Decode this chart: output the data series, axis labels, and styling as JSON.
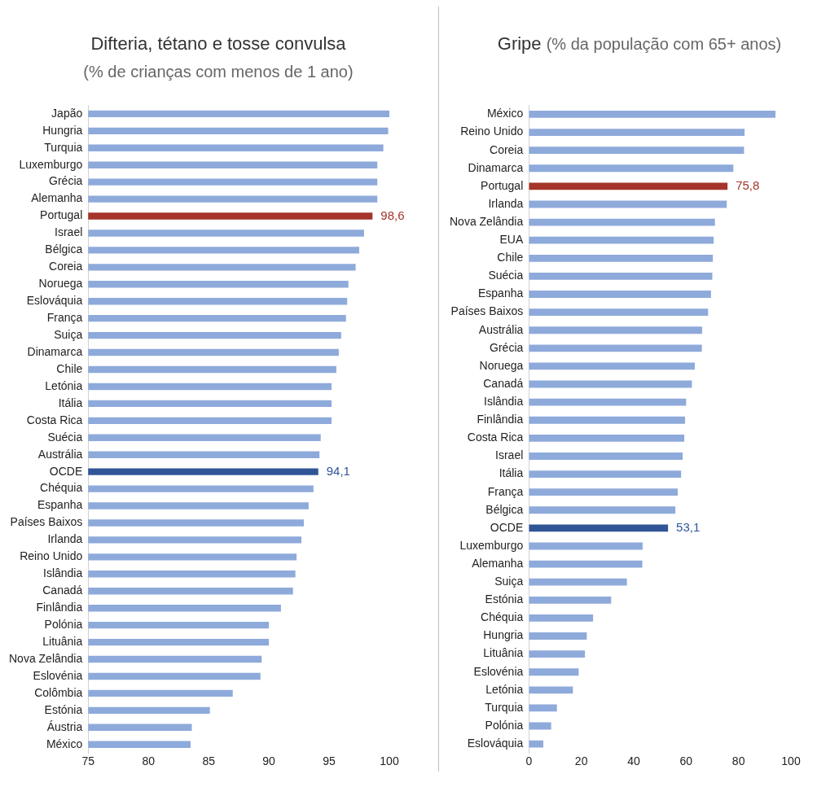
{
  "chart_data": [
    {
      "type": "bar",
      "orientation": "horizontal",
      "title": "Difteria, tétano e tosse convulsa",
      "subtitle": "(% de crianças com menos de 1 ano)",
      "categories": [
        "Japão",
        "Hungria",
        "Turquia",
        "Luxemburgo",
        "Grécia",
        "Alemanha",
        "Portugal",
        "Israel",
        "Bélgica",
        "Coreia",
        "Noruega",
        "Eslováquia",
        "França",
        "Suiça",
        "Dinamarca",
        "Chile",
        "Letónia",
        "Itália",
        "Costa Rica",
        "Suécia",
        "Austrália",
        "OCDE",
        "Chéquia",
        "Espanha",
        "Países Baixos",
        "Irlanda",
        "Reino Unido",
        "Islândia",
        "Canadá",
        "Finlândia",
        "Polónia",
        "Lituânia",
        "Nova Zelândia",
        "Eslovénia",
        "Colômbia",
        "Estónia",
        "Áustria",
        "México"
      ],
      "values": [
        100,
        99.9,
        99.5,
        99.0,
        99.0,
        99.0,
        98.6,
        97.9,
        97.5,
        97.2,
        96.6,
        96.5,
        96.4,
        96.0,
        95.8,
        95.6,
        95.2,
        95.2,
        95.2,
        94.3,
        94.2,
        94.1,
        93.7,
        93.3,
        92.9,
        92.7,
        92.3,
        92.2,
        92.0,
        91.0,
        90.0,
        90.0,
        89.4,
        89.3,
        87.0,
        85.1,
        83.6,
        83.5
      ],
      "colors": [
        "#8eaadb",
        "#8eaadb",
        "#8eaadb",
        "#8eaadb",
        "#8eaadb",
        "#8eaadb",
        "#a5342a",
        "#8eaadb",
        "#8eaadb",
        "#8eaadb",
        "#8eaadb",
        "#8eaadb",
        "#8eaadb",
        "#8eaadb",
        "#8eaadb",
        "#8eaadb",
        "#8eaadb",
        "#8eaadb",
        "#8eaadb",
        "#8eaadb",
        "#8eaadb",
        "#2f5597",
        "#8eaadb",
        "#8eaadb",
        "#8eaadb",
        "#8eaadb",
        "#8eaadb",
        "#8eaadb",
        "#8eaadb",
        "#8eaadb",
        "#8eaadb",
        "#8eaadb",
        "#8eaadb",
        "#8eaadb",
        "#8eaadb",
        "#8eaadb",
        "#8eaadb",
        "#8eaadb"
      ],
      "value_labels": [
        null,
        null,
        null,
        null,
        null,
        null,
        "98,6",
        null,
        null,
        null,
        null,
        null,
        null,
        null,
        null,
        null,
        null,
        null,
        null,
        null,
        null,
        "94,1",
        null,
        null,
        null,
        null,
        null,
        null,
        null,
        null,
        null,
        null,
        null,
        null,
        null,
        null,
        null,
        null
      ],
      "xlim": [
        75,
        100
      ],
      "xticks": [
        75,
        80,
        85,
        90,
        95,
        100
      ]
    },
    {
      "type": "bar",
      "orientation": "horizontal",
      "title": "Gripe",
      "subtitle": "(% da população com 65+ anos)",
      "categories": [
        "México",
        "Reino Unido",
        "Coreia",
        "Dinamarca",
        "Portugal",
        "Irlanda",
        "Nova Zelândia",
        "EUA",
        "Chile",
        "Suécia",
        "Espanha",
        "Países Baixos",
        "Austrália",
        "Grécia",
        "Noruega",
        "Canadá",
        "Islândia",
        "Finlândia",
        "Costa Rica",
        "Israel",
        "Itália",
        "França",
        "Bélgica",
        "OCDE",
        "Luxemburgo",
        "Alemanha",
        "Suiça",
        "Estónia",
        "Chéquia",
        "Hungria",
        "Lituânia",
        "Eslovénia",
        "Letónia",
        "Turquia",
        "Polónia",
        "Eslováquia"
      ],
      "values": [
        94.1,
        82.3,
        82.1,
        78.0,
        75.8,
        75.5,
        71.0,
        70.5,
        70.2,
        70.0,
        69.5,
        68.4,
        66.1,
        66.0,
        63.3,
        62.2,
        60.0,
        59.6,
        59.3,
        58.7,
        58.1,
        56.8,
        55.9,
        53.1,
        43.4,
        43.3,
        37.4,
        31.4,
        24.5,
        22.1,
        21.4,
        19.0,
        16.8,
        10.7,
        8.5,
        5.5
      ],
      "colors": [
        "#8eaadb",
        "#8eaadb",
        "#8eaadb",
        "#8eaadb",
        "#a5342a",
        "#8eaadb",
        "#8eaadb",
        "#8eaadb",
        "#8eaadb",
        "#8eaadb",
        "#8eaadb",
        "#8eaadb",
        "#8eaadb",
        "#8eaadb",
        "#8eaadb",
        "#8eaadb",
        "#8eaadb",
        "#8eaadb",
        "#8eaadb",
        "#8eaadb",
        "#8eaadb",
        "#8eaadb",
        "#8eaadb",
        "#2f5597",
        "#8eaadb",
        "#8eaadb",
        "#8eaadb",
        "#8eaadb",
        "#8eaadb",
        "#8eaadb",
        "#8eaadb",
        "#8eaadb",
        "#8eaadb",
        "#8eaadb",
        "#8eaadb",
        "#8eaadb"
      ],
      "value_labels": [
        null,
        null,
        null,
        null,
        "75,8",
        null,
        null,
        null,
        null,
        null,
        null,
        null,
        null,
        null,
        null,
        null,
        null,
        null,
        null,
        null,
        null,
        null,
        null,
        "53,1",
        null,
        null,
        null,
        null,
        null,
        null,
        null,
        null,
        null,
        null,
        null,
        null
      ],
      "xlim": [
        0,
        100
      ],
      "xticks": [
        0,
        20,
        40,
        60,
        80,
        100
      ]
    }
  ]
}
